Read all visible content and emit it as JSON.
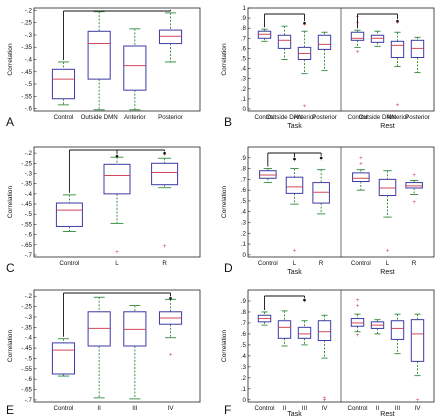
{
  "chart_data": [
    {
      "type": "box",
      "panel_label": "A",
      "ylabel": "Correlation",
      "xlabel": "",
      "ylim": [
        -0.61,
        -0.19
      ],
      "yticks": [
        -0.6,
        -0.55,
        -0.5,
        -0.45,
        -0.4,
        -0.35,
        -0.3,
        -0.25,
        -0.2
      ],
      "categories": [
        "Control",
        "Outside DMN",
        "Anterior",
        "Posterior"
      ],
      "groups": [
        {
          "label": "",
          "boxes": [
            {
              "min": -0.585,
              "q1": -0.56,
              "median": -0.48,
              "q3": -0.44,
              "max": -0.41,
              "outliers": []
            },
            {
              "min": -0.605,
              "q1": -0.48,
              "median": -0.335,
              "q3": -0.285,
              "max": -0.205,
              "outliers": []
            },
            {
              "min": -0.605,
              "q1": -0.525,
              "median": -0.425,
              "q3": -0.345,
              "max": -0.275,
              "outliers": []
            },
            {
              "min": -0.41,
              "q1": -0.335,
              "median": -0.305,
              "q3": -0.28,
              "max": -0.21,
              "outliers": []
            }
          ]
        }
      ],
      "brackets": [
        {
          "from": 0,
          "to": 3,
          "star": false
        }
      ]
    },
    {
      "type": "box",
      "panel_label": "B",
      "ylabel": "Correlation",
      "ylim": [
        -0.02,
        1.0
      ],
      "yticks": [
        0,
        0.1,
        0.2,
        0.3,
        0.4,
        0.5,
        0.6,
        0.7,
        0.8,
        0.9,
        1
      ],
      "groups": [
        {
          "label": "Task",
          "categories": [
            "Control",
            "Outside DHN",
            "Anterior",
            "Posterior"
          ],
          "boxes": [
            {
              "min": 0.67,
              "q1": 0.7,
              "median": 0.74,
              "q3": 0.77,
              "max": 0.79,
              "outliers": []
            },
            {
              "min": 0.49,
              "q1": 0.6,
              "median": 0.68,
              "q3": 0.73,
              "max": 0.82,
              "outliers": []
            },
            {
              "min": 0.35,
              "q1": 0.49,
              "median": 0.55,
              "q3": 0.61,
              "max": 0.77,
              "outliers": [
                0.84,
                0.03
              ]
            },
            {
              "min": 0.38,
              "q1": 0.59,
              "median": 0.64,
              "q3": 0.73,
              "max": 0.76,
              "outliers": []
            }
          ]
        },
        {
          "label": "Rest",
          "categories": [
            "Control",
            "Outside DMN",
            "Anterior",
            "Posterior"
          ],
          "boxes": [
            {
              "min": 0.61,
              "q1": 0.68,
              "median": 0.7,
              "q3": 0.76,
              "max": 0.78,
              "outliers": [
                0.92,
                0.86,
                0.57
              ]
            },
            {
              "min": 0.62,
              "q1": 0.66,
              "median": 0.7,
              "q3": 0.73,
              "max": 0.77,
              "outliers": []
            },
            {
              "min": 0.42,
              "q1": 0.51,
              "median": 0.63,
              "q3": 0.67,
              "max": 0.76,
              "outliers": [
                0.86,
                0.04
              ]
            },
            {
              "min": 0.36,
              "q1": 0.51,
              "median": 0.6,
              "q3": 0.68,
              "max": 0.71,
              "outliers": []
            }
          ]
        }
      ],
      "brackets": [
        {
          "group": 0,
          "from": 0,
          "to": 2,
          "star": true
        },
        {
          "group": 1,
          "from": 0,
          "to": 2,
          "star": true
        }
      ]
    },
    {
      "type": "box",
      "panel_label": "C",
      "ylabel": "Correlation",
      "ylim": [
        -0.71,
        -0.17
      ],
      "yticks": [
        -0.7,
        -0.65,
        -0.6,
        -0.55,
        -0.5,
        -0.45,
        -0.4,
        -0.35,
        -0.3,
        -0.25,
        -0.2
      ],
      "categories": [
        "Control",
        "L",
        "R"
      ],
      "groups": [
        {
          "label": "",
          "boxes": [
            {
              "min": -0.585,
              "q1": -0.56,
              "median": -0.48,
              "q3": -0.445,
              "max": -0.405,
              "outliers": []
            },
            {
              "min": -0.545,
              "q1": -0.4,
              "median": -0.31,
              "q3": -0.255,
              "max": -0.22,
              "outliers": [
                -0.685
              ]
            },
            {
              "min": -0.37,
              "q1": -0.355,
              "median": -0.295,
              "q3": -0.25,
              "max": -0.225,
              "outliers": [
                -0.205,
                -0.655
              ]
            }
          ]
        }
      ],
      "brackets": [
        {
          "from": 0,
          "to": 2,
          "star": true,
          "mid_tick": 1
        }
      ]
    },
    {
      "type": "box",
      "panel_label": "D",
      "ylabel": "Correlation",
      "ylim": [
        -0.02,
        1.0
      ],
      "yticks": [
        0,
        0.1,
        0.2,
        0.3,
        0.4,
        0.5,
        0.6,
        0.7,
        0.8,
        0.9
      ],
      "groups": [
        {
          "label": "Task",
          "categories": [
            "Control",
            "L",
            "R"
          ],
          "boxes": [
            {
              "min": 0.67,
              "q1": 0.71,
              "median": 0.74,
              "q3": 0.78,
              "max": 0.8,
              "outliers": []
            },
            {
              "min": 0.47,
              "q1": 0.57,
              "median": 0.63,
              "q3": 0.72,
              "max": 0.8,
              "outliers": [
                0.88,
                0.04
              ]
            },
            {
              "min": 0.38,
              "q1": 0.48,
              "median": 0.58,
              "q3": 0.67,
              "max": 0.79,
              "outliers": [
                0.89
              ]
            }
          ]
        },
        {
          "label": "Rest",
          "categories": [
            "Control",
            "L",
            "R"
          ],
          "boxes": [
            {
              "min": 0.6,
              "q1": 0.68,
              "median": 0.71,
              "q3": 0.76,
              "max": 0.79,
              "outliers": [
                0.9,
                0.85
              ]
            },
            {
              "min": 0.35,
              "q1": 0.55,
              "median": 0.62,
              "q3": 0.7,
              "max": 0.78,
              "outliers": [
                0.04
              ]
            },
            {
              "min": 0.56,
              "q1": 0.62,
              "median": 0.64,
              "q3": 0.67,
              "max": 0.69,
              "outliers": [
                0.74,
                0.49
              ]
            }
          ]
        }
      ],
      "brackets": [
        {
          "group": 0,
          "from": 0,
          "to": 2,
          "star": true,
          "mid_tick": 1
        }
      ]
    },
    {
      "type": "box",
      "panel_label": "E",
      "ylabel": "Correlation",
      "ylim": [
        -0.71,
        -0.17
      ],
      "yticks": [
        -0.7,
        -0.65,
        -0.6,
        -0.55,
        -0.5,
        -0.45,
        -0.4,
        -0.35,
        -0.3,
        -0.25,
        -0.2
      ],
      "categories": [
        "Control",
        "II",
        "III",
        "IV"
      ],
      "groups": [
        {
          "label": "",
          "boxes": [
            {
              "min": -0.585,
              "q1": -0.575,
              "median": -0.46,
              "q3": -0.425,
              "max": -0.405,
              "outliers": []
            },
            {
              "min": -0.69,
              "q1": -0.44,
              "median": -0.355,
              "q3": -0.275,
              "max": -0.205,
              "outliers": []
            },
            {
              "min": -0.695,
              "q1": -0.44,
              "median": -0.36,
              "q3": -0.275,
              "max": -0.245,
              "outliers": []
            },
            {
              "min": -0.4,
              "q1": -0.335,
              "median": -0.305,
              "q3": -0.275,
              "max": -0.215,
              "outliers": [
                -0.48
              ]
            }
          ]
        }
      ],
      "brackets": [
        {
          "from": 0,
          "to": 3,
          "star": true
        }
      ]
    },
    {
      "type": "box",
      "panel_label": "F",
      "ylabel": "Correlation",
      "ylim": [
        -0.02,
        1.0
      ],
      "yticks": [
        0,
        0.1,
        0.2,
        0.3,
        0.4,
        0.5,
        0.6,
        0.7,
        0.8,
        0.9
      ],
      "groups": [
        {
          "label": "Task",
          "categories": [
            "Control",
            "II",
            "III",
            "IV"
          ],
          "boxes": [
            {
              "min": 0.68,
              "q1": 0.71,
              "median": 0.74,
              "q3": 0.77,
              "max": 0.8,
              "outliers": []
            },
            {
              "min": 0.49,
              "q1": 0.56,
              "median": 0.66,
              "q3": 0.72,
              "max": 0.81,
              "outliers": []
            },
            {
              "min": 0.5,
              "q1": 0.56,
              "median": 0.6,
              "q3": 0.66,
              "max": 0.72,
              "outliers": [
                0.9
              ]
            },
            {
              "min": 0.38,
              "q1": 0.54,
              "median": 0.62,
              "q3": 0.72,
              "max": 0.77,
              "outliers": [
                0.02,
                0.0
              ]
            }
          ]
        },
        {
          "label": "Rest",
          "categories": [
            "Control",
            "II",
            "III",
            "IV"
          ],
          "boxes": [
            {
              "min": 0.62,
              "q1": 0.67,
              "median": 0.7,
              "q3": 0.74,
              "max": 0.78,
              "outliers": [
                0.91,
                0.86,
                0.59
              ]
            },
            {
              "min": 0.6,
              "q1": 0.65,
              "median": 0.68,
              "q3": 0.71,
              "max": 0.73,
              "outliers": []
            },
            {
              "min": 0.42,
              "q1": 0.55,
              "median": 0.65,
              "q3": 0.72,
              "max": 0.78,
              "outliers": []
            },
            {
              "min": 0.22,
              "q1": 0.35,
              "median": 0.6,
              "q3": 0.73,
              "max": 0.78,
              "outliers": [
                0.0
              ]
            }
          ]
        }
      ],
      "brackets": [
        {
          "group": 0,
          "from": 0,
          "to": 2,
          "star": true
        }
      ]
    }
  ],
  "style": {
    "box_color": "#3b3ba6",
    "median_color": "#d1495b",
    "whisker_color": "#2e8b3a",
    "outlier_color": "#d1495b",
    "bracket_color": "#111111",
    "axis_color": "#222222"
  }
}
